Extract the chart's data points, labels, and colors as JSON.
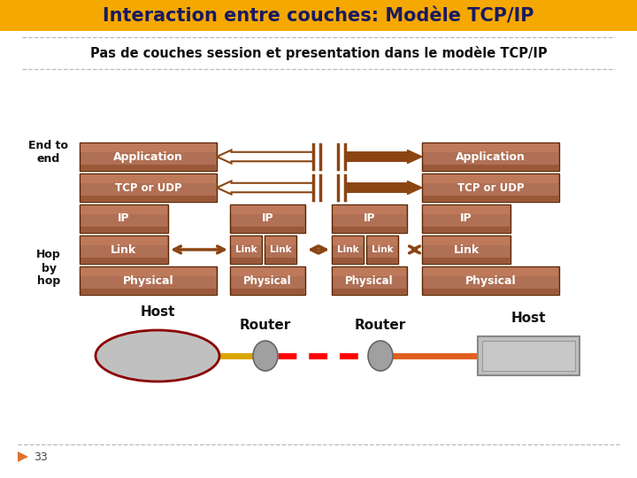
{
  "title": "Interaction entre couches: Modèle TCP/IP",
  "subtitle": "Pas de couches session et presentation dans le modèle TCP/IP",
  "title_bg": "#F5A800",
  "title_color": "#1a1a60",
  "bg_color": "#FFFFFF",
  "brick_main": "#B07050",
  "brick_dark": "#8B4513",
  "brick_edge": "#6B3010",
  "footer_number": "33",
  "labels": {
    "end_to_end": "End to\nend",
    "hop_by_hop": "Hop\nby\nhop",
    "host": "Host",
    "router": "Router",
    "application": "Application",
    "tcp": "TCP or UDP",
    "ip": "IP",
    "link": "Link",
    "physical": "Physical"
  }
}
